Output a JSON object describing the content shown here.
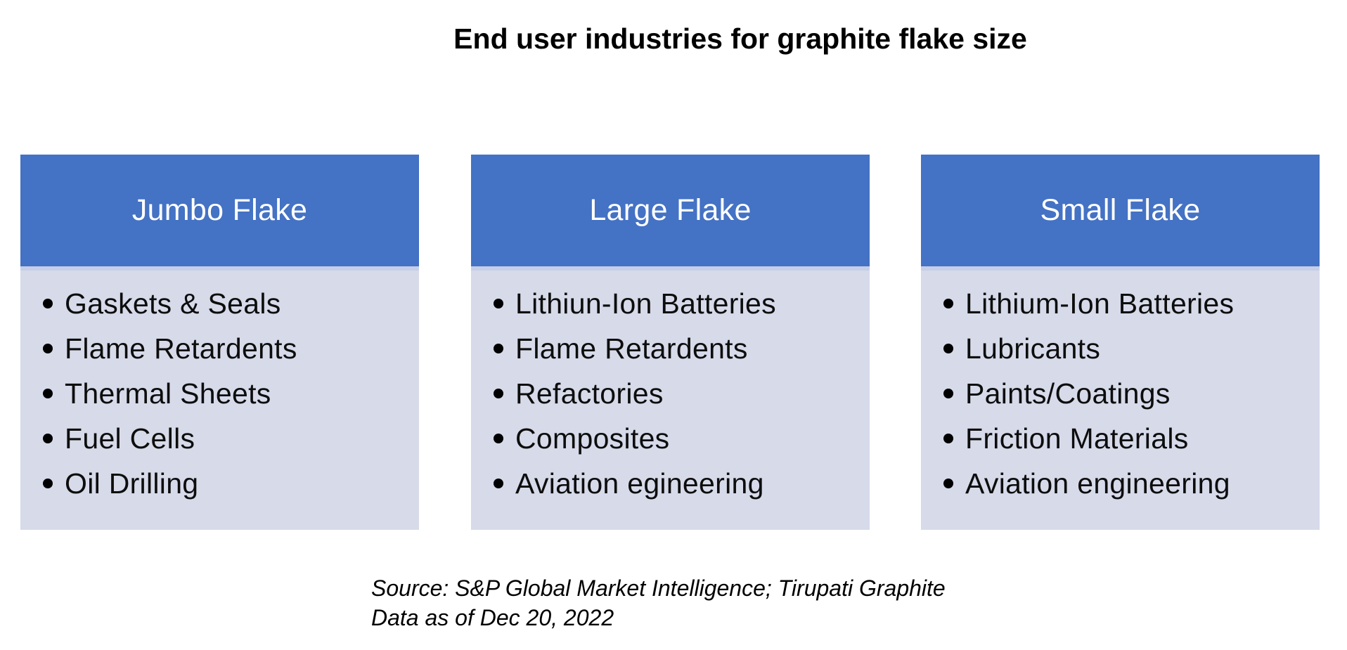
{
  "title": "End user industries for graphite flake size",
  "columns": [
    {
      "header": "Jumbo Flake",
      "items": [
        "Gaskets & Seals",
        "Flame Retardents",
        "Thermal Sheets",
        "Fuel Cells",
        "Oil Drilling"
      ]
    },
    {
      "header": "Large Flake",
      "items": [
        "Lithiun-Ion Batteries",
        "Flame Retardents",
        "Refactories",
        "Composites",
        "Aviation egineering"
      ]
    },
    {
      "header": "Small Flake",
      "items": [
        "Lithium-Ion Batteries",
        "Lubricants",
        "Paints/Coatings",
        "Friction Materials",
        "Aviation engineering"
      ]
    }
  ],
  "source": {
    "line1": "Source: S&P Global Market Intelligence; Tirupati Graphite",
    "line2": "Data as of Dec 20, 2022"
  },
  "colors": {
    "header_bg": "#4472C4",
    "body_bg": "#D6DAE9",
    "separator": "#C7CEE8",
    "header_text": "#FFFFFF",
    "body_text": "#0D0D0D"
  }
}
